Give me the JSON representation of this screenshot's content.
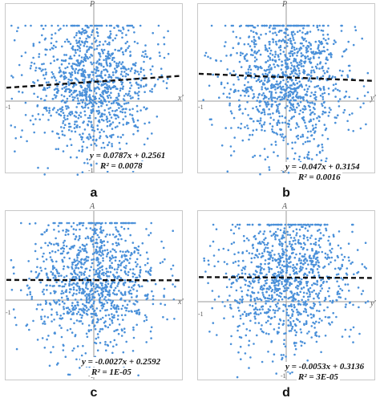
{
  "colors": {
    "points": "#4a90d9",
    "trend": "#111111",
    "axes": "#9a9a9a"
  },
  "chart_data": [
    {
      "type": "scatter",
      "panel_label": "a",
      "xlabel": "x'",
      "ylabel": "P",
      "xlim": [
        -1,
        1
      ],
      "ylim": [
        -1,
        1
      ],
      "x_tick_label": "-1",
      "y_tick_label": "-1",
      "trendline": {
        "slope": 0.0787,
        "intercept": 0.2561,
        "style": "dashed"
      },
      "equation": "y = 0.0787x + 0.2561",
      "r2_text": "R² = 0.0078",
      "grid": false
    },
    {
      "type": "scatter",
      "panel_label": "b",
      "xlabel": "y'",
      "ylabel": "P",
      "xlim": [
        -1,
        1
      ],
      "ylim": [
        -1,
        1
      ],
      "x_tick_label": "-1",
      "y_tick_label": "-1",
      "trendline": {
        "slope": -0.047,
        "intercept": 0.3154,
        "style": "dashed"
      },
      "equation": "y = -0.047x + 0.3154",
      "r2_text": "R² = 0.0016",
      "grid": false
    },
    {
      "type": "scatter",
      "panel_label": "c",
      "xlabel": "x'",
      "ylabel": "A",
      "xlim": [
        -1,
        1
      ],
      "ylim": [
        -1,
        1
      ],
      "x_tick_label": "-1",
      "y_tick_label": "-1",
      "trendline": {
        "slope": -0.0027,
        "intercept": 0.2592,
        "style": "dashed"
      },
      "equation": "y = -0.0027x + 0.2592",
      "r2_text": "R² = 1E-05",
      "grid": false
    },
    {
      "type": "scatter",
      "panel_label": "d",
      "xlabel": "y'",
      "ylabel": "A",
      "xlim": [
        -1,
        1
      ],
      "ylim": [
        -1,
        1
      ],
      "x_tick_label": "-1",
      "y_tick_label": "-1",
      "trendline": {
        "slope": -0.0053,
        "intercept": 0.3136,
        "style": "dashed"
      },
      "equation": "y = -0.0053x + 0.3136",
      "r2_text": "R² = 3E-05",
      "grid": false
    }
  ]
}
